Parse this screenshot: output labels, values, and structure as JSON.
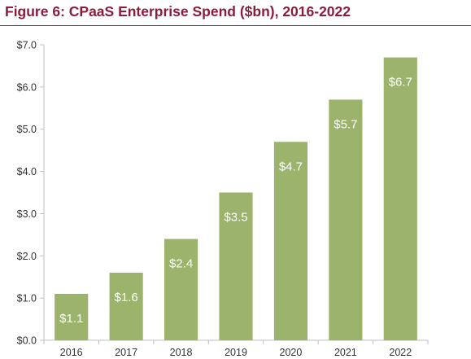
{
  "header": {
    "title": "Figure 6: CPaaS Enterprise Spend ($bn), 2016-2022"
  },
  "colors": {
    "title": "#8b1d3c",
    "bar": "#9bb36a",
    "axis": "#bfbfbf",
    "data_label": "#ffffff"
  },
  "chart_data": {
    "type": "bar",
    "title": "Figure 6: CPaaS Enterprise Spend ($bn), 2016-2022",
    "xlabel": "",
    "ylabel": "",
    "categories": [
      "2016",
      "2017",
      "2018",
      "2019",
      "2020",
      "2021",
      "2022"
    ],
    "values": [
      1.1,
      1.6,
      2.4,
      3.5,
      4.7,
      5.7,
      6.7
    ],
    "data_labels": [
      "$1.1",
      "$1.6",
      "$2.4",
      "$3.5",
      "$4.7",
      "$5.7",
      "$6.7"
    ],
    "ylim": [
      0,
      7
    ],
    "yticks": [
      0,
      1,
      2,
      3,
      4,
      5,
      6,
      7
    ],
    "ytick_labels": [
      "$0.0",
      "$1.0",
      "$2.0",
      "$3.0",
      "$4.0",
      "$5.0",
      "$6.0",
      "$7.0"
    ],
    "grid": false,
    "legend": "none"
  }
}
